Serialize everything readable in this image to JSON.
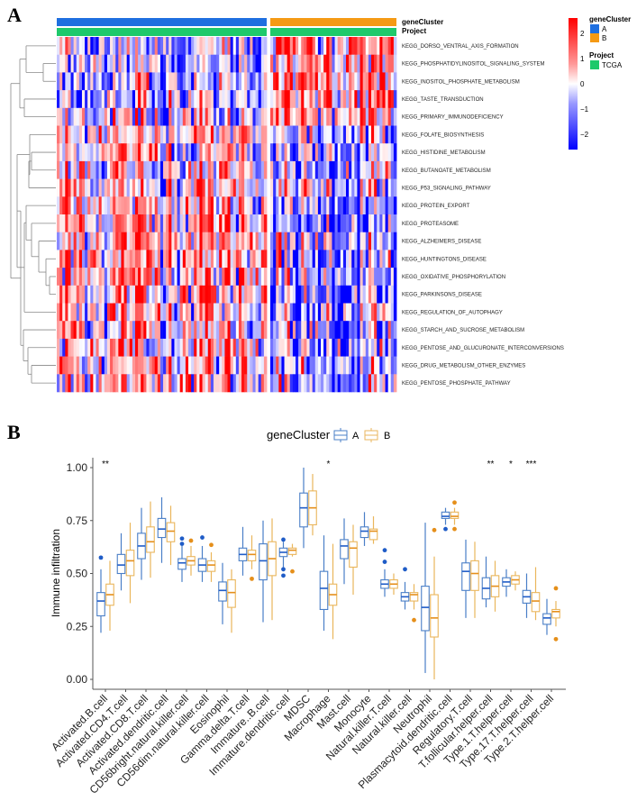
{
  "panels": {
    "a_label": "A",
    "b_label": "B"
  },
  "heatmap": {
    "annotations": {
      "row1_label": "geneCluster",
      "row2_label": "Project"
    },
    "clusters": [
      {
        "name": "A",
        "color": "#1e6fe0",
        "n_samples": 75
      },
      {
        "name": "B",
        "color": "#f59a14",
        "n_samples": 45
      }
    ],
    "project": {
      "name": "TCGA",
      "color": "#1ec96b"
    },
    "rows": [
      "KEGG_DORSO_VENTRAL_AXIS_FORMATION",
      "KEGG_PHOSPHATIDYLINOSITOL_SIGNALING_SYSTEM",
      "KEGG_INOSITOL_PHOSPHATE_METABOLISM",
      "KEGG_TASTE_TRANSDUCTION",
      "KEGG_PRIMARY_IMMUNODEFICIENCY",
      "KEGG_FOLATE_BIOSYNTHESIS",
      "KEGG_HISTIDINE_METABOLISM",
      "KEGG_BUTANOATE_METABOLISM",
      "KEGG_P53_SIGNALING_PATHWAY",
      "KEGG_PROTEIN_EXPORT",
      "KEGG_PROTEASOME",
      "KEGG_ALZHEIMERS_DISEASE",
      "KEGG_HUNTINGTONS_DISEASE",
      "KEGG_OXIDATIVE_PHOSPHORYLATION",
      "KEGG_PARKINSONS_DISEASE",
      "KEGG_REGULATION_OF_AUTOPHAGY",
      "KEGG_STARCH_AND_SUCROSE_METABOLISM",
      "KEGG_PENTOSE_AND_GLUCURONATE_INTERCONVERSIONS",
      "KEGG_DRUG_METABOLISM_OTHER_ENZYMES",
      "KEGG_PENTOSE_PHOSPHATE_PATHWAY"
    ],
    "row_bias": {
      "note": "mean tendency per row for cluster A / cluster B (z-score)",
      "A": [
        -0.6,
        -0.5,
        -0.4,
        -0.3,
        -0.2,
        0.3,
        0.3,
        0.3,
        0.2,
        0.5,
        0.6,
        0.6,
        0.6,
        0.6,
        0.6,
        0.3,
        0.4,
        0.4,
        0.4,
        0.4
      ],
      "B": [
        0.9,
        0.8,
        0.8,
        0.9,
        0.7,
        -0.6,
        -0.5,
        -0.6,
        -0.4,
        -0.8,
        -0.8,
        -0.8,
        -0.8,
        -0.8,
        -0.8,
        -0.5,
        -0.7,
        -0.6,
        -0.7,
        -0.6
      ]
    },
    "colorbar": {
      "ticks": [
        2,
        1,
        0,
        -1,
        -2
      ],
      "tick_labels": [
        "2",
        "1",
        "0",
        "−1",
        "−2"
      ],
      "range": [
        -2.6,
        2.6
      ],
      "high_color": "#ff0000",
      "mid_color": "#ffffff",
      "low_color": "#0000ff"
    },
    "legend": {
      "cluster_title": "geneCluster",
      "cluster_items": [
        "A",
        "B"
      ],
      "project_title": "Project",
      "project_items": [
        "TCGA"
      ]
    }
  },
  "chart_data": {
    "type": "box",
    "legend_title": "geneCluster",
    "legend_items": [
      {
        "name": "A",
        "color": "#4a7fc7"
      },
      {
        "name": "B",
        "color": "#eab65c"
      }
    ],
    "ylabel": "Immune infiltration",
    "xlabel": "",
    "ylim": [
      0,
      1.05
    ],
    "yticks": [
      0.0,
      0.25,
      0.5,
      0.75,
      1.0
    ],
    "ytick_labels": [
      "0.00",
      "0.25",
      "0.50",
      "0.75",
      "1.00"
    ],
    "categories": [
      "Activated.B.cell",
      "Activated.CD4.T.cell",
      "Activated.CD8.T.cell",
      "Activated.dendritic.cell",
      "CD56bright.natural.killer.cell",
      "CD56dim.natural.killer.cell",
      "Eosinophil",
      "Gamma.delta.T.cell",
      "Immature..B.cell",
      "Immature.dendritic.cell",
      "MDSC",
      "Macrophage",
      "Mast.cell",
      "Monocyte",
      "Natural.killer.T.cell",
      "Natural.killer.cell",
      "Neutrophil",
      "Plasmacytoid.dendritic.cell",
      "Regulatory.T.cell",
      "T.follicular.helper.cell",
      "Type.1.T.helper.cell",
      "Type.17.T.helper.cell",
      "Type.2.T.helper.cell"
    ],
    "significance": [
      "**",
      "",
      "",
      "",
      "",
      "",
      "",
      "",
      "",
      "",
      "",
      "*",
      "",
      "",
      "",
      "",
      "",
      "",
      "",
      "**",
      "*",
      "***",
      ""
    ],
    "series": [
      {
        "name": "A",
        "boxes": [
          {
            "min": 0.22,
            "q1": 0.3,
            "median": 0.37,
            "q3": 0.41,
            "max": 0.52,
            "outliers": [
              0.575
            ]
          },
          {
            "min": 0.42,
            "q1": 0.5,
            "median": 0.54,
            "q3": 0.59,
            "max": 0.69,
            "outliers": []
          },
          {
            "min": 0.47,
            "q1": 0.57,
            "median": 0.63,
            "q3": 0.69,
            "max": 0.81,
            "outliers": []
          },
          {
            "min": 0.55,
            "q1": 0.67,
            "median": 0.71,
            "q3": 0.76,
            "max": 0.86,
            "outliers": []
          },
          {
            "min": 0.46,
            "q1": 0.52,
            "median": 0.55,
            "q3": 0.57,
            "max": 0.63,
            "outliers": [
              0.64,
              0.665
            ]
          },
          {
            "min": 0.46,
            "q1": 0.51,
            "median": 0.54,
            "q3": 0.57,
            "max": 0.63,
            "outliers": [
              0.67
            ]
          },
          {
            "min": 0.26,
            "q1": 0.37,
            "median": 0.42,
            "q3": 0.46,
            "max": 0.55,
            "outliers": []
          },
          {
            "min": 0.49,
            "q1": 0.56,
            "median": 0.59,
            "q3": 0.62,
            "max": 0.72,
            "outliers": []
          },
          {
            "min": 0.27,
            "q1": 0.47,
            "median": 0.56,
            "q3": 0.64,
            "max": 0.75,
            "outliers": []
          },
          {
            "min": 0.53,
            "q1": 0.58,
            "median": 0.6,
            "q3": 0.62,
            "max": 0.65,
            "outliers": [
              0.49,
              0.52,
              0.66
            ]
          },
          {
            "min": 0.62,
            "q1": 0.72,
            "median": 0.81,
            "q3": 0.88,
            "max": 1.0,
            "outliers": []
          },
          {
            "min": 0.23,
            "q1": 0.33,
            "median": 0.43,
            "q3": 0.51,
            "max": 0.68,
            "outliers": []
          },
          {
            "min": 0.45,
            "q1": 0.57,
            "median": 0.63,
            "q3": 0.66,
            "max": 0.76,
            "outliers": []
          },
          {
            "min": 0.63,
            "q1": 0.67,
            "median": 0.7,
            "q3": 0.72,
            "max": 0.79,
            "outliers": []
          },
          {
            "min": 0.39,
            "q1": 0.43,
            "median": 0.45,
            "q3": 0.47,
            "max": 0.52,
            "outliers": [
              0.555,
              0.61
            ]
          },
          {
            "min": 0.33,
            "q1": 0.37,
            "median": 0.39,
            "q3": 0.41,
            "max": 0.46,
            "outliers": [
              0.52
            ]
          },
          {
            "min": 0.03,
            "q1": 0.23,
            "median": 0.34,
            "q3": 0.44,
            "max": 0.74,
            "outliers": []
          },
          {
            "min": 0.73,
            "q1": 0.76,
            "median": 0.77,
            "q3": 0.79,
            "max": 0.81,
            "outliers": [
              0.71
            ]
          },
          {
            "min": 0.29,
            "q1": 0.42,
            "median": 0.51,
            "q3": 0.55,
            "max": 0.66,
            "outliers": []
          },
          {
            "min": 0.34,
            "q1": 0.38,
            "median": 0.43,
            "q3": 0.48,
            "max": 0.58,
            "outliers": []
          },
          {
            "min": 0.39,
            "q1": 0.44,
            "median": 0.46,
            "q3": 0.48,
            "max": 0.52,
            "outliers": []
          },
          {
            "min": 0.29,
            "q1": 0.36,
            "median": 0.39,
            "q3": 0.42,
            "max": 0.5,
            "outliers": []
          },
          {
            "min": 0.21,
            "q1": 0.26,
            "median": 0.29,
            "q3": 0.31,
            "max": 0.38,
            "outliers": []
          }
        ]
      },
      {
        "name": "B",
        "boxes": [
          {
            "min": 0.23,
            "q1": 0.35,
            "median": 0.4,
            "q3": 0.45,
            "max": 0.56,
            "outliers": []
          },
          {
            "min": 0.36,
            "q1": 0.49,
            "median": 0.56,
            "q3": 0.61,
            "max": 0.74,
            "outliers": []
          },
          {
            "min": 0.48,
            "q1": 0.6,
            "median": 0.65,
            "q3": 0.72,
            "max": 0.84,
            "outliers": []
          },
          {
            "min": 0.54,
            "q1": 0.65,
            "median": 0.7,
            "q3": 0.74,
            "max": 0.82,
            "outliers": []
          },
          {
            "min": 0.49,
            "q1": 0.54,
            "median": 0.56,
            "q3": 0.58,
            "max": 0.63,
            "outliers": [
              0.655
            ]
          },
          {
            "min": 0.46,
            "q1": 0.51,
            "median": 0.54,
            "q3": 0.56,
            "max": 0.6,
            "outliers": [
              0.635
            ]
          },
          {
            "min": 0.22,
            "q1": 0.34,
            "median": 0.41,
            "q3": 0.47,
            "max": 0.52,
            "outliers": []
          },
          {
            "min": 0.52,
            "q1": 0.56,
            "median": 0.59,
            "q3": 0.61,
            "max": 0.68,
            "outliers": [
              0.475
            ]
          },
          {
            "min": 0.28,
            "q1": 0.49,
            "median": 0.57,
            "q3": 0.65,
            "max": 0.76,
            "outliers": []
          },
          {
            "min": 0.58,
            "q1": 0.59,
            "median": 0.61,
            "q3": 0.62,
            "max": 0.64,
            "outliers": [
              0.51
            ]
          },
          {
            "min": 0.68,
            "q1": 0.73,
            "median": 0.81,
            "q3": 0.89,
            "max": 0.97,
            "outliers": []
          },
          {
            "min": 0.19,
            "q1": 0.35,
            "median": 0.4,
            "q3": 0.45,
            "max": 0.64,
            "outliers": []
          },
          {
            "min": 0.4,
            "q1": 0.53,
            "median": 0.62,
            "q3": 0.65,
            "max": 0.73,
            "outliers": []
          },
          {
            "min": 0.64,
            "q1": 0.66,
            "median": 0.7,
            "q3": 0.71,
            "max": 0.77,
            "outliers": []
          },
          {
            "min": 0.4,
            "q1": 0.43,
            "median": 0.45,
            "q3": 0.47,
            "max": 0.5,
            "outliers": []
          },
          {
            "min": 0.33,
            "q1": 0.37,
            "median": 0.4,
            "q3": 0.41,
            "max": 0.45,
            "outliers": [
              0.28
            ]
          },
          {
            "min": 0.0,
            "q1": 0.2,
            "median": 0.29,
            "q3": 0.4,
            "max": 0.58,
            "outliers": [
              0.705
            ]
          },
          {
            "min": 0.73,
            "q1": 0.76,
            "median": 0.77,
            "q3": 0.79,
            "max": 0.81,
            "outliers": [
              0.71,
              0.835
            ]
          },
          {
            "min": 0.29,
            "q1": 0.42,
            "median": 0.5,
            "q3": 0.56,
            "max": 0.65,
            "outliers": []
          },
          {
            "min": 0.32,
            "q1": 0.39,
            "median": 0.44,
            "q3": 0.49,
            "max": 0.56,
            "outliers": []
          },
          {
            "min": 0.42,
            "q1": 0.45,
            "median": 0.47,
            "q3": 0.49,
            "max": 0.51,
            "outliers": []
          },
          {
            "min": 0.28,
            "q1": 0.32,
            "median": 0.37,
            "q3": 0.41,
            "max": 0.53,
            "outliers": []
          },
          {
            "min": 0.25,
            "q1": 0.29,
            "median": 0.32,
            "q3": 0.33,
            "max": 0.37,
            "outliers": [
              0.19,
              0.43
            ]
          }
        ]
      }
    ]
  }
}
